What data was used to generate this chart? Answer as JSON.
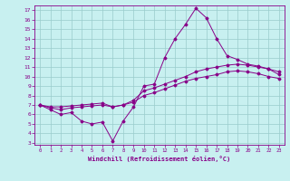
{
  "xlabel": "Windchill (Refroidissement éolien,°C)",
  "ylabel": "",
  "xlim": [
    -0.5,
    23.5
  ],
  "ylim": [
    2.8,
    17.5
  ],
  "xticks": [
    0,
    1,
    2,
    3,
    4,
    5,
    6,
    7,
    8,
    9,
    10,
    11,
    12,
    13,
    14,
    15,
    16,
    17,
    18,
    19,
    20,
    21,
    22,
    23
  ],
  "yticks": [
    3,
    4,
    5,
    6,
    7,
    8,
    9,
    10,
    11,
    12,
    13,
    14,
    15,
    16,
    17
  ],
  "background_color": "#c8f0f0",
  "line_color": "#880088",
  "grid_color": "#99cccc",
  "series": [
    [
      7.0,
      6.5,
      6.0,
      6.2,
      5.3,
      5.0,
      5.2,
      3.2,
      5.3,
      6.8,
      9.0,
      9.2,
      12.0,
      14.0,
      15.5,
      17.2,
      16.2,
      14.0,
      12.2,
      11.8,
      11.3,
      11.1,
      10.8,
      10.2
    ],
    [
      7.0,
      6.8,
      6.8,
      6.9,
      7.0,
      7.1,
      7.2,
      6.8,
      7.0,
      7.5,
      8.5,
      8.8,
      9.2,
      9.6,
      10.0,
      10.5,
      10.8,
      11.0,
      11.2,
      11.3,
      11.2,
      11.0,
      10.8,
      10.5
    ],
    [
      7.0,
      6.7,
      6.5,
      6.7,
      6.8,
      6.9,
      7.0,
      6.8,
      7.0,
      7.3,
      8.0,
      8.3,
      8.7,
      9.1,
      9.5,
      9.8,
      10.0,
      10.2,
      10.5,
      10.6,
      10.5,
      10.3,
      10.0,
      9.8
    ]
  ]
}
